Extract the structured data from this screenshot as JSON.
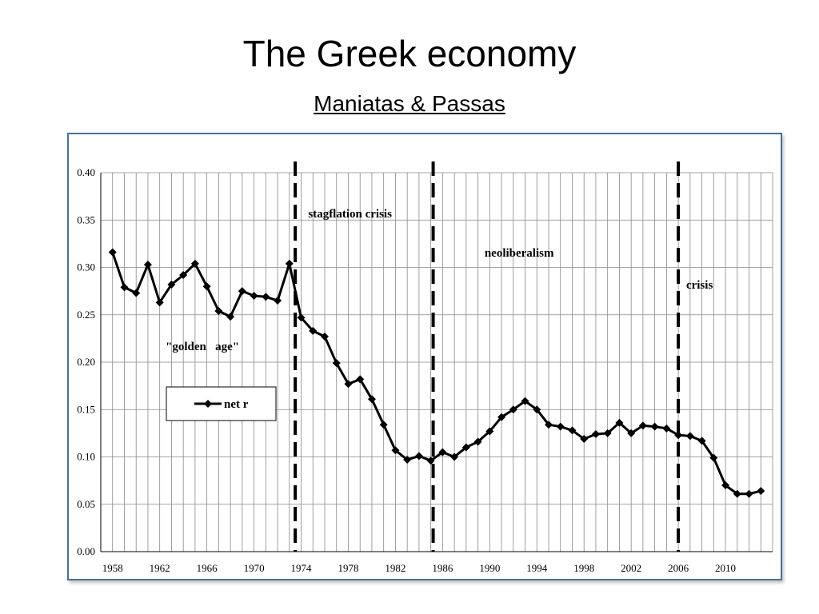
{
  "slide": {
    "title": "The Greek economy",
    "subtitle": "Maniatas & Passas"
  },
  "chart_data": {
    "type": "line",
    "ylim": [
      0,
      0.4
    ],
    "yticks": [
      "0.00",
      "0.05",
      "0.10",
      "0.15",
      "0.20",
      "0.25",
      "0.30",
      "0.35",
      "0.40"
    ],
    "xticks": [
      "1958",
      "1962",
      "1966",
      "1970",
      "1974",
      "1978",
      "1982",
      "1986",
      "1990",
      "1994",
      "1998",
      "2002",
      "2006",
      "2010"
    ],
    "grid": true,
    "legend_position": "center-left",
    "series": [
      {
        "name": "net r",
        "color": "#000000",
        "marker": "diamond",
        "x": [
          1958,
          1959,
          1960,
          1961,
          1962,
          1963,
          1964,
          1965,
          1966,
          1967,
          1968,
          1969,
          1970,
          1971,
          1972,
          1973,
          1974,
          1975,
          1976,
          1977,
          1978,
          1979,
          1980,
          1981,
          1982,
          1983,
          1984,
          1985,
          1986,
          1987,
          1988,
          1989,
          1990,
          1991,
          1992,
          1993,
          1994,
          1995,
          1996,
          1997,
          1998,
          1999,
          2000,
          2001,
          2002,
          2003,
          2004,
          2005,
          2006,
          2007,
          2008,
          2009,
          2010,
          2011,
          2012,
          2013
        ],
        "values": [
          0.316,
          0.279,
          0.273,
          0.303,
          0.263,
          0.282,
          0.292,
          0.304,
          0.28,
          0.254,
          0.248,
          0.275,
          0.27,
          0.269,
          0.265,
          0.304,
          0.247,
          0.233,
          0.227,
          0.199,
          0.177,
          0.182,
          0.161,
          0.134,
          0.107,
          0.097,
          0.101,
          0.096,
          0.105,
          0.1,
          0.11,
          0.116,
          0.127,
          0.142,
          0.15,
          0.159,
          0.15,
          0.134,
          0.132,
          0.128,
          0.119,
          0.124,
          0.125,
          0.136,
          0.125,
          0.133,
          0.132,
          0.13,
          0.123,
          0.122,
          0.117,
          0.099,
          0.07,
          0.061,
          0.061,
          0.064
        ]
      }
    ],
    "periods": [
      {
        "label": "stagflation crisis",
        "start_year": 1973.5
      },
      {
        "label": "neoliberalism",
        "start_year": 1985.2
      },
      {
        "label": "crisis",
        "start_year": 2006
      }
    ],
    "annotations": [
      {
        "text": "\"golden   age\""
      }
    ]
  }
}
